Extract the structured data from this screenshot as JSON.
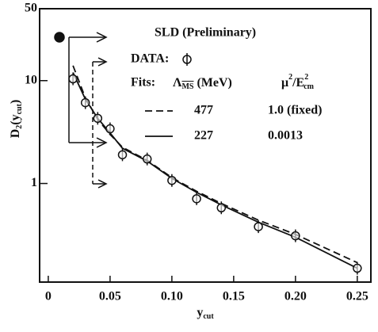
{
  "chart_data": {
    "type": "scatter",
    "title": "SLD (Preliminary)",
    "data_label": "DATA:",
    "x_label": {
      "main": "y",
      "sub": "cut"
    },
    "y_label": {
      "main": "D",
      "sub": "2",
      "open": "(y",
      "sub2": "cut",
      "close": ")"
    },
    "legend_header": {
      "fits": "Fits:",
      "lambda": "Λ",
      "lambda_sub": "MS",
      "lambda_unit": "(MeV)",
      "mu": "μ",
      "mu_sup": "2",
      "e": "/E",
      "e_sup": "2",
      "e_sub": "cm"
    },
    "log_y": true,
    "xlim": [
      -0.007,
      0.261
    ],
    "ylim": [
      0.11,
      50
    ],
    "xticks": [
      0,
      0.05,
      {
        "value": 0.1,
        "label": "0.10"
      },
      0.15,
      {
        "value": 0.2,
        "label": "0.20"
      },
      0.25
    ],
    "yticks": [
      1,
      10,
      50
    ],
    "data": {
      "color": "#111111",
      "x": [
        0.02,
        0.03,
        0.04,
        0.05,
        0.06,
        0.08,
        0.1,
        0.12,
        0.14,
        0.17,
        0.2,
        0.25
      ],
      "values": [
        10.4,
        6.1,
        4.3,
        3.4,
        1.9,
        1.73,
        1.07,
        0.71,
        0.58,
        0.38,
        0.31,
        0.15
      ],
      "errors": [
        0.8,
        0.4,
        0.3,
        0.25,
        0.15,
        0.1,
        0.08,
        0.06,
        0.06,
        0.05,
        0.04,
        0.02
      ]
    },
    "series": [
      {
        "name": "477",
        "scale": "1.0 (fixed)",
        "dash": true,
        "color": "#111111",
        "x": [
          0.02,
          0.03,
          0.04,
          0.05,
          0.06,
          0.08,
          0.1,
          0.12,
          0.14,
          0.17,
          0.2,
          0.25
        ],
        "values": [
          14,
          6.8,
          4.2,
          3.0,
          2.25,
          1.68,
          1.14,
          0.84,
          0.64,
          0.44,
          0.32,
          0.17
        ]
      },
      {
        "name": "227",
        "scale": "0.0013",
        "dash": false,
        "color": "#111111",
        "x": [
          0.02,
          0.03,
          0.04,
          0.05,
          0.06,
          0.08,
          0.1,
          0.12,
          0.14,
          0.17,
          0.2,
          0.25
        ],
        "values": [
          12,
          6.6,
          4.3,
          3.1,
          2.2,
          1.65,
          1.12,
          0.82,
          0.62,
          0.42,
          0.3,
          0.15
        ]
      }
    ]
  }
}
